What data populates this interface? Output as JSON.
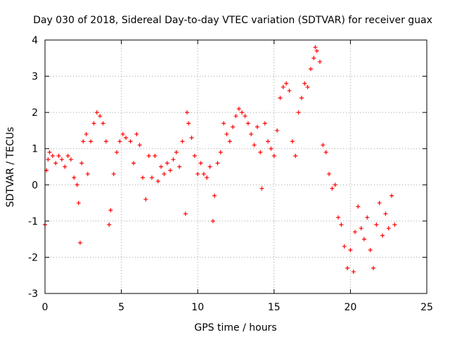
{
  "chart_data": {
    "type": "scatter",
    "title": "Day 030 of 2018, Sidereal Day-to-day VTEC variation (SDTVAR) for receiver guax",
    "xlabel": "GPS time / hours",
    "ylabel": "SDTVAR / TECUs",
    "xlim": [
      0,
      25
    ],
    "ylim": [
      -3,
      4
    ],
    "xticks": [
      "0",
      "5",
      "10",
      "15",
      "20",
      "25"
    ],
    "yticks": [
      "-3",
      "-2",
      "-1",
      "0",
      "1",
      "2",
      "3",
      "4"
    ],
    "grid": true,
    "marker": "+",
    "color": "#ff0000",
    "series": [
      {
        "name": "SDTVAR",
        "points": [
          [
            0.0,
            -1.1
          ],
          [
            0.1,
            0.4
          ],
          [
            0.2,
            0.7
          ],
          [
            0.3,
            0.9
          ],
          [
            0.5,
            0.8
          ],
          [
            0.7,
            0.6
          ],
          [
            0.9,
            0.8
          ],
          [
            1.1,
            0.7
          ],
          [
            1.3,
            0.5
          ],
          [
            1.5,
            0.8
          ],
          [
            1.7,
            0.7
          ],
          [
            1.9,
            0.2
          ],
          [
            2.1,
            0.0
          ],
          [
            2.2,
            -0.5
          ],
          [
            2.3,
            -1.6
          ],
          [
            2.4,
            0.6
          ],
          [
            2.5,
            1.2
          ],
          [
            2.7,
            1.4
          ],
          [
            2.8,
            0.3
          ],
          [
            3.0,
            1.2
          ],
          [
            3.2,
            1.7
          ],
          [
            3.4,
            2.0
          ],
          [
            3.6,
            1.9
          ],
          [
            3.8,
            1.7
          ],
          [
            4.0,
            1.2
          ],
          [
            4.2,
            -1.1
          ],
          [
            4.3,
            -0.7
          ],
          [
            4.5,
            0.3
          ],
          [
            4.7,
            0.9
          ],
          [
            4.9,
            1.2
          ],
          [
            5.1,
            1.4
          ],
          [
            5.3,
            1.3
          ],
          [
            5.6,
            1.2
          ],
          [
            5.8,
            0.6
          ],
          [
            6.0,
            1.4
          ],
          [
            6.2,
            1.1
          ],
          [
            6.4,
            0.2
          ],
          [
            6.6,
            -0.4
          ],
          [
            6.8,
            0.8
          ],
          [
            7.0,
            0.2
          ],
          [
            7.2,
            0.8
          ],
          [
            7.4,
            0.1
          ],
          [
            7.6,
            0.5
          ],
          [
            7.8,
            0.3
          ],
          [
            8.0,
            0.6
          ],
          [
            8.2,
            0.4
          ],
          [
            8.4,
            0.7
          ],
          [
            8.6,
            0.9
          ],
          [
            8.8,
            0.5
          ],
          [
            9.0,
            1.2
          ],
          [
            9.2,
            -0.8
          ],
          [
            9.3,
            2.0
          ],
          [
            9.4,
            1.7
          ],
          [
            9.6,
            1.3
          ],
          [
            9.8,
            0.8
          ],
          [
            10.0,
            0.3
          ],
          [
            10.2,
            0.6
          ],
          [
            10.4,
            0.3
          ],
          [
            10.6,
            0.2
          ],
          [
            10.8,
            0.5
          ],
          [
            11.0,
            -1.0
          ],
          [
            11.1,
            -0.3
          ],
          [
            11.3,
            0.6
          ],
          [
            11.5,
            0.9
          ],
          [
            11.7,
            1.7
          ],
          [
            11.9,
            1.4
          ],
          [
            12.1,
            1.2
          ],
          [
            12.3,
            1.6
          ],
          [
            12.5,
            1.9
          ],
          [
            12.7,
            2.1
          ],
          [
            12.9,
            2.0
          ],
          [
            13.1,
            1.9
          ],
          [
            13.3,
            1.7
          ],
          [
            13.5,
            1.4
          ],
          [
            13.7,
            1.1
          ],
          [
            13.9,
            1.6
          ],
          [
            14.1,
            0.9
          ],
          [
            14.2,
            -0.1
          ],
          [
            14.4,
            1.7
          ],
          [
            14.6,
            1.2
          ],
          [
            14.8,
            1.0
          ],
          [
            15.0,
            0.8
          ],
          [
            15.2,
            1.5
          ],
          [
            15.4,
            2.4
          ],
          [
            15.6,
            2.7
          ],
          [
            15.8,
            2.8
          ],
          [
            16.0,
            2.6
          ],
          [
            16.2,
            1.2
          ],
          [
            16.4,
            0.8
          ],
          [
            16.6,
            2.0
          ],
          [
            16.8,
            2.4
          ],
          [
            17.0,
            2.8
          ],
          [
            17.2,
            2.7
          ],
          [
            17.4,
            3.2
          ],
          [
            17.6,
            3.5
          ],
          [
            17.7,
            3.8
          ],
          [
            17.8,
            3.7
          ],
          [
            18.0,
            3.4
          ],
          [
            18.2,
            1.1
          ],
          [
            18.4,
            0.9
          ],
          [
            18.6,
            0.3
          ],
          [
            18.8,
            -0.1
          ],
          [
            19.0,
            0.0
          ],
          [
            19.2,
            -0.9
          ],
          [
            19.4,
            -1.1
          ],
          [
            19.6,
            -1.7
          ],
          [
            19.8,
            -2.3
          ],
          [
            20.0,
            -1.8
          ],
          [
            20.2,
            -2.4
          ],
          [
            20.3,
            -1.3
          ],
          [
            20.5,
            -0.6
          ],
          [
            20.7,
            -1.2
          ],
          [
            20.9,
            -1.5
          ],
          [
            21.1,
            -0.9
          ],
          [
            21.3,
            -1.8
          ],
          [
            21.5,
            -2.3
          ],
          [
            21.7,
            -1.1
          ],
          [
            21.9,
            -0.5
          ],
          [
            22.1,
            -1.4
          ],
          [
            22.3,
            -0.8
          ],
          [
            22.5,
            -1.2
          ],
          [
            22.7,
            -0.3
          ],
          [
            22.9,
            -1.1
          ]
        ]
      }
    ]
  }
}
